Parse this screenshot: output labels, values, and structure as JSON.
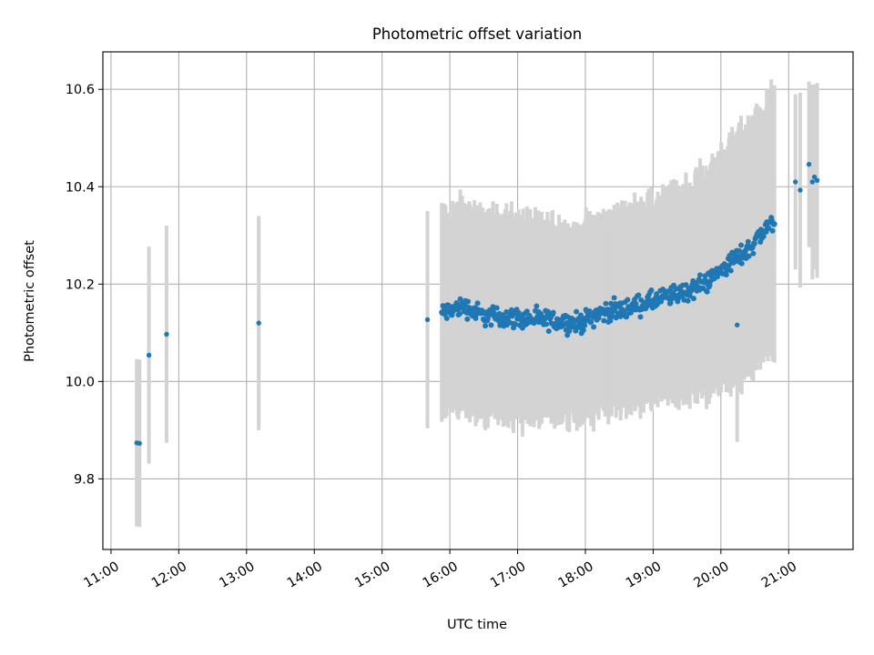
{
  "chart_data": {
    "type": "scatter",
    "title": "Photometric offset variation",
    "xlabel": "UTC time",
    "ylabel": "Photometric offset",
    "x_unit": "hours (UTC)",
    "xlim": [
      10.88,
      21.95
    ],
    "ylim": [
      9.655,
      10.677
    ],
    "grid": true,
    "legend": "none",
    "x_ticks": [
      {
        "value": 11,
        "label": "11:00"
      },
      {
        "value": 12,
        "label": "12:00"
      },
      {
        "value": 13,
        "label": "13:00"
      },
      {
        "value": 14,
        "label": "14:00"
      },
      {
        "value": 15,
        "label": "15:00"
      },
      {
        "value": 16,
        "label": "16:00"
      },
      {
        "value": 17,
        "label": "17:00"
      },
      {
        "value": 18,
        "label": "18:00"
      },
      {
        "value": 19,
        "label": "19:00"
      },
      {
        "value": 20,
        "label": "20:00"
      },
      {
        "value": 21,
        "label": "21:00"
      }
    ],
    "y_ticks": [
      {
        "value": 9.8,
        "label": "9.8"
      },
      {
        "value": 10.0,
        "label": "10.0"
      },
      {
        "value": 10.2,
        "label": "10.2"
      },
      {
        "value": 10.4,
        "label": "10.4"
      },
      {
        "value": 10.6,
        "label": "10.6"
      }
    ],
    "colors": {
      "points": "#1f77b4",
      "error_bars": "#d3d3d3",
      "grid": "#b0b0b0"
    },
    "isolated_points": [
      {
        "x": 11.38,
        "y": 9.874,
        "err": 0.172
      },
      {
        "x": 11.42,
        "y": 9.873,
        "err": 0.172
      },
      {
        "x": 11.56,
        "y": 10.054,
        "err": 0.223
      },
      {
        "x": 11.82,
        "y": 10.097,
        "err": 0.223
      },
      {
        "x": 13.18,
        "y": 10.12,
        "err": 0.22
      },
      {
        "x": 15.67,
        "y": 10.127,
        "err": 0.223
      },
      {
        "x": 20.24,
        "y": 10.116,
        "err": 0.24
      },
      {
        "x": 21.1,
        "y": 10.41,
        "err": 0.18
      },
      {
        "x": 21.17,
        "y": 10.393,
        "err": 0.2
      },
      {
        "x": 21.3,
        "y": 10.446,
        "err": 0.17
      },
      {
        "x": 21.35,
        "y": 10.41,
        "err": 0.2
      },
      {
        "x": 21.38,
        "y": 10.42,
        "err": 0.19
      },
      {
        "x": 21.42,
        "y": 10.413,
        "err": 0.2
      }
    ],
    "dense_series": {
      "x_start": 15.88,
      "x_end": 20.79,
      "count": 520,
      "trend": [
        {
          "x": 15.9,
          "y": 10.14
        },
        {
          "x": 16.2,
          "y": 10.155
        },
        {
          "x": 16.5,
          "y": 10.135
        },
        {
          "x": 17.0,
          "y": 10.13
        },
        {
          "x": 17.5,
          "y": 10.125
        },
        {
          "x": 17.9,
          "y": 10.12
        },
        {
          "x": 18.2,
          "y": 10.14
        },
        {
          "x": 18.6,
          "y": 10.15
        },
        {
          "x": 19.0,
          "y": 10.165
        },
        {
          "x": 19.5,
          "y": 10.185
        },
        {
          "x": 19.8,
          "y": 10.205
        },
        {
          "x": 20.1,
          "y": 10.24
        },
        {
          "x": 20.4,
          "y": 10.27
        },
        {
          "x": 20.6,
          "y": 10.305
        },
        {
          "x": 20.79,
          "y": 10.33
        }
      ],
      "error_half_width": [
        {
          "x": 15.9,
          "y": 0.2
        },
        {
          "x": 17.0,
          "y": 0.2
        },
        {
          "x": 18.0,
          "y": 0.19
        },
        {
          "x": 19.0,
          "y": 0.2
        },
        {
          "x": 19.8,
          "y": 0.22
        },
        {
          "x": 20.3,
          "y": 0.25
        },
        {
          "x": 20.79,
          "y": 0.26
        }
      ]
    }
  }
}
